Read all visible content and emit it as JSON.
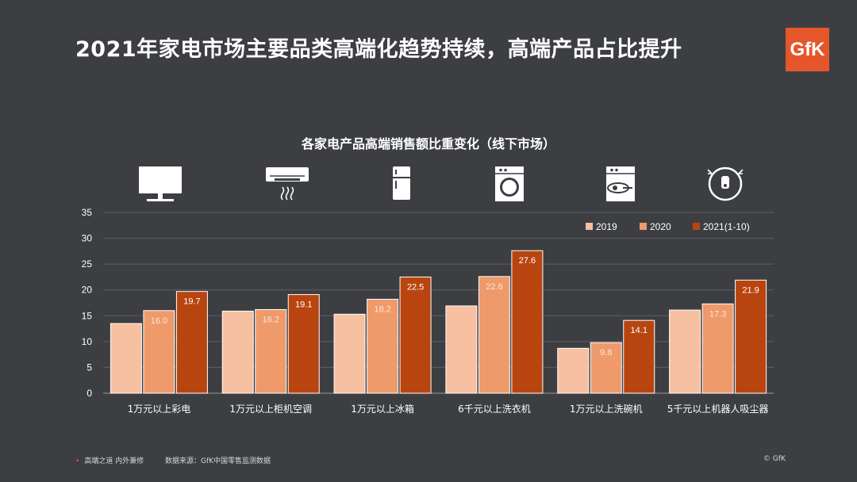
{
  "header": {
    "title": "2021年家电市场主要品类高端化趋势持续，高端产品占比提升",
    "logo_text": "GfK"
  },
  "colors": {
    "background": "#3c3e42",
    "series": [
      "#f7c0a0",
      "#ef9a6b",
      "#b8450f"
    ],
    "brand": "#e5562b"
  },
  "icons": [
    "tv-icon",
    "air-conditioner-icon",
    "refrigerator-icon",
    "washing-machine-icon",
    "dishwasher-icon",
    "robot-vacuum-icon"
  ],
  "chart_data": {
    "type": "bar",
    "title": "各家电产品高端销售额比重变化（线下市场）",
    "categories": [
      "1万元以上彩电",
      "1万元以上柜机空调",
      "1万元以上冰箱",
      "6千元以上洗衣机",
      "1万元以上洗碗机",
      "5千元以上机器人吸尘器"
    ],
    "series": [
      {
        "name": "2019",
        "values": [
          13.5,
          15.9,
          15.3,
          16.9,
          8.7,
          16.1
        ],
        "labeled": false
      },
      {
        "name": "2020",
        "values": [
          16.0,
          16.2,
          18.2,
          22.6,
          9.8,
          17.3
        ],
        "labeled": true
      },
      {
        "name": "2021(1-10)",
        "values": [
          19.7,
          19.1,
          22.5,
          27.6,
          14.1,
          21.9
        ],
        "labeled": true
      }
    ],
    "ylim": [
      0,
      35
    ],
    "yticks": [
      0,
      5,
      10,
      15,
      20,
      25,
      30,
      35
    ],
    "grid": true,
    "legend_position": "top-right"
  },
  "footer": {
    "left": "高端之道 内外兼修",
    "source": "数据来源：GfK中国零售监测数据",
    "copyright": "© GfK"
  }
}
